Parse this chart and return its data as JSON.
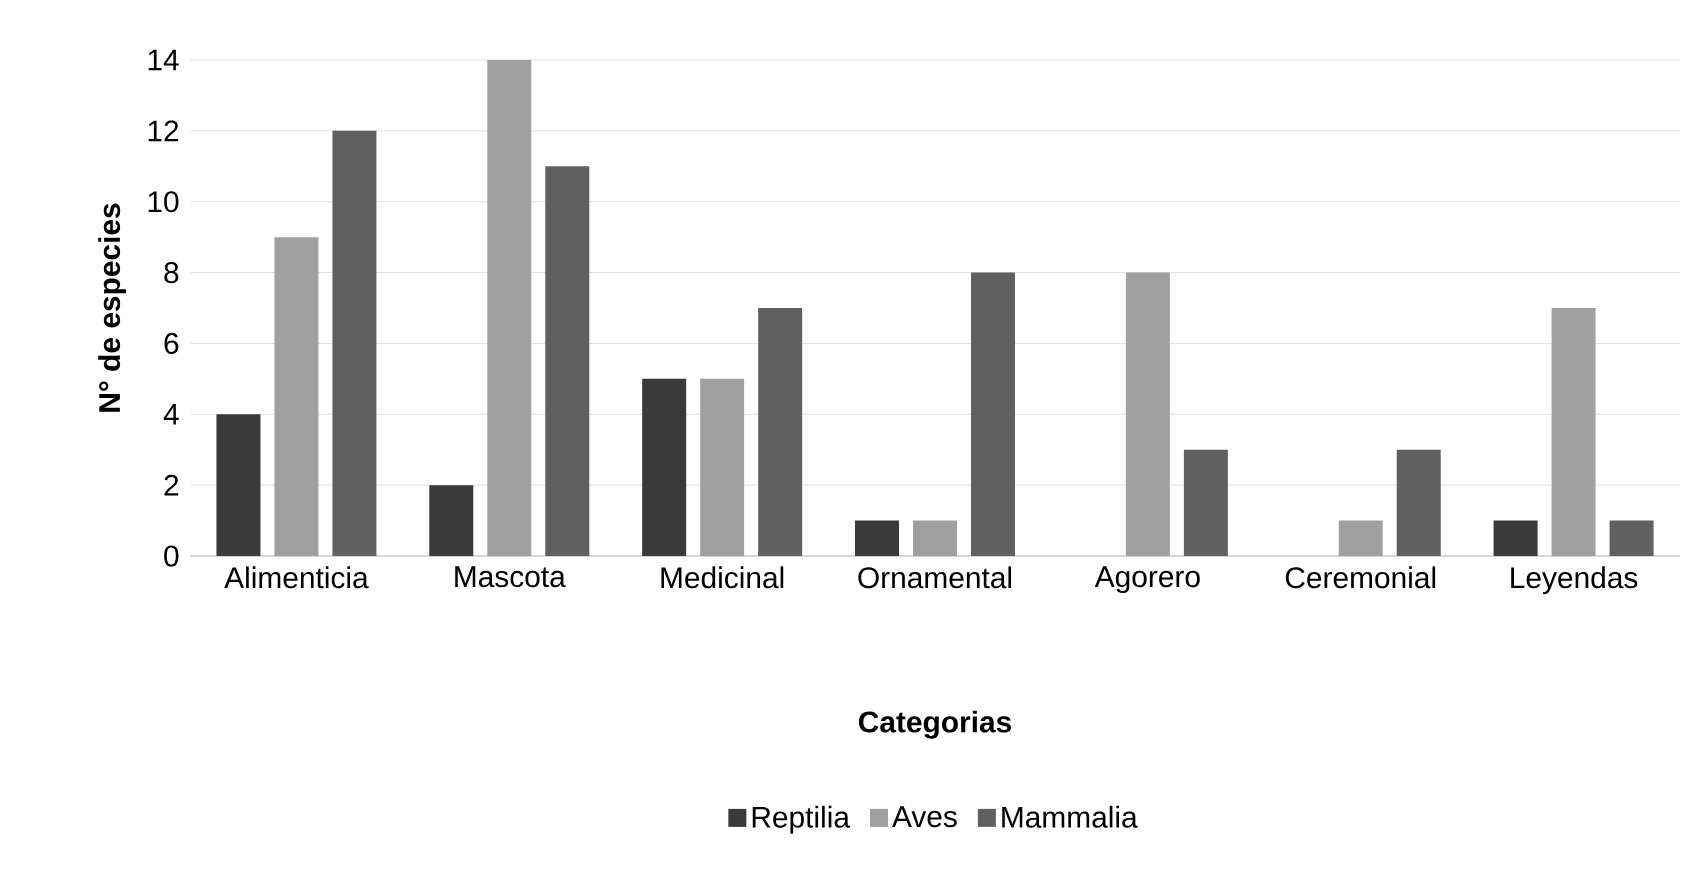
{
  "chart_data": {
    "type": "bar",
    "xlabel": "Categorias",
    "ylabel": "N° de especies",
    "categories": [
      "Alimenticia",
      "Mascota",
      "Medicinal",
      "Ornamental",
      "Agorero",
      "Ceremonial",
      "Leyendas"
    ],
    "series": [
      {
        "name": "Reptilia",
        "color": "#3a3a3a",
        "values": [
          4,
          2,
          5,
          1,
          0,
          0,
          1
        ]
      },
      {
        "name": "Aves",
        "color": "#a0a0a0",
        "values": [
          9,
          14,
          5,
          1,
          8,
          1,
          7
        ]
      },
      {
        "name": "Mammalia",
        "color": "#606060",
        "values": [
          12,
          11,
          7,
          8,
          3,
          3,
          1
        ]
      }
    ],
    "ylim": [
      0,
      14
    ],
    "yticks": [
      0,
      2,
      4,
      6,
      8,
      10,
      12,
      14
    ],
    "grid": "y",
    "legend": "bottom"
  }
}
